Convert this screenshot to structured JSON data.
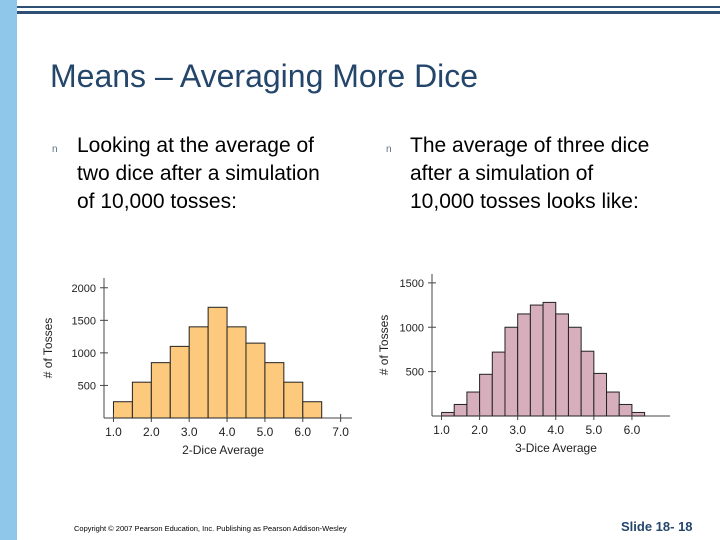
{
  "slide": {
    "title": "Means – Averaging More Dice",
    "bullet_glyph": "n",
    "bullet1": [
      "Looking at the average of",
      "two dice after a simulation",
      "of 10,000 tosses:"
    ],
    "bullet2": [
      "The average of three dice",
      "after a simulation of",
      "10,000 tosses looks like:"
    ],
    "footer_copyright": "Copyright © 2007 Pearson Education, Inc. Publishing as Pearson Addison-Wesley",
    "footer_slide": "Slide 18- 18",
    "colors": {
      "accent": "#24466b",
      "side_bar": "#8ec7ea",
      "bar2": "#fcc97d",
      "bar3": "#d7aebb"
    }
  },
  "chart_data": [
    {
      "type": "bar",
      "title": "",
      "xlabel": "2-Dice Average",
      "ylabel": "# of Tosses",
      "x_ticks": [
        "1.0",
        "2.0",
        "3.0",
        "4.0",
        "5.0",
        "6.0",
        "7.0"
      ],
      "x_tick_values": [
        1,
        2,
        3,
        4,
        5,
        6,
        7
      ],
      "y_ticks": [
        "500",
        "1000",
        "1500",
        "2000"
      ],
      "y_tick_values": [
        500,
        1000,
        1500,
        2000
      ],
      "xlim": [
        0.75,
        7.3
      ],
      "ylim": [
        0,
        2150
      ],
      "bar_width": 0.5,
      "bin_centers": [
        1.25,
        1.75,
        2.25,
        2.75,
        3.25,
        3.75,
        4.25,
        4.75,
        5.25,
        5.75,
        6.25
      ],
      "values": [
        250,
        550,
        850,
        1100,
        1400,
        1700,
        1400,
        1150,
        850,
        550,
        250
      ]
    },
    {
      "type": "bar",
      "title": "",
      "xlabel": "3-Dice Average",
      "ylabel": "# of Tosses",
      "x_ticks": [
        "1.0",
        "2.0",
        "3.0",
        "4.0",
        "5.0",
        "6.0"
      ],
      "x_tick_values": [
        1,
        2,
        3,
        4,
        5,
        6
      ],
      "y_ticks": [
        "500",
        "1000",
        "1500"
      ],
      "y_tick_values": [
        500,
        1000,
        1500
      ],
      "xlim": [
        0.75,
        7.0
      ],
      "ylim": [
        0,
        1600
      ],
      "bar_width": 0.3333,
      "bin_centers": [
        1.1667,
        1.5,
        1.8333,
        2.1667,
        2.5,
        2.8333,
        3.1667,
        3.5,
        3.8333,
        4.1667,
        4.5,
        4.8333,
        5.1667,
        5.5,
        5.8333,
        6.1667
      ],
      "values": [
        40,
        130,
        270,
        470,
        720,
        1000,
        1150,
        1250,
        1280,
        1150,
        1000,
        730,
        480,
        270,
        130,
        40
      ]
    }
  ]
}
